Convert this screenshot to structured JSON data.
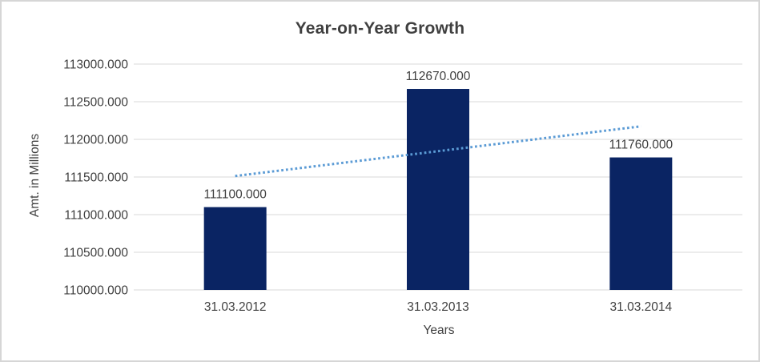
{
  "canvas": {
    "background": "#ffffff",
    "border_color": "#d6d6d6"
  },
  "chart_data": {
    "type": "bar",
    "title": "Year-on-Year Growth",
    "xlabel": "Years",
    "ylabel": "Amt. in Millions",
    "categories": [
      "31.03.2012",
      "31.03.2013",
      "31.03.2014"
    ],
    "values": [
      111100,
      112670,
      111760
    ],
    "data_labels": [
      "111100.000",
      "112670.000",
      "111760.000"
    ],
    "ylim": [
      110000,
      113000
    ],
    "ytick_step": 500,
    "yticks": [
      {
        "value": 113000,
        "label": "113000.000"
      },
      {
        "value": 112500,
        "label": "112500.000"
      },
      {
        "value": 112000,
        "label": "112000.000"
      },
      {
        "value": 111500,
        "label": "111500.000"
      },
      {
        "value": 111000,
        "label": "111000.000"
      },
      {
        "value": 110500,
        "label": "110500.000"
      },
      {
        "value": 110000,
        "label": "110000.000"
      }
    ],
    "grid": true,
    "legend": "none",
    "bar_color": "#0a2463",
    "gridline_color": "#d9d9d9",
    "text_color": "#404040",
    "trendline": {
      "type": "linear",
      "style": "dotted",
      "color": "#5b9bd5",
      "start_value": 111513,
      "end_value": 112173
    }
  }
}
